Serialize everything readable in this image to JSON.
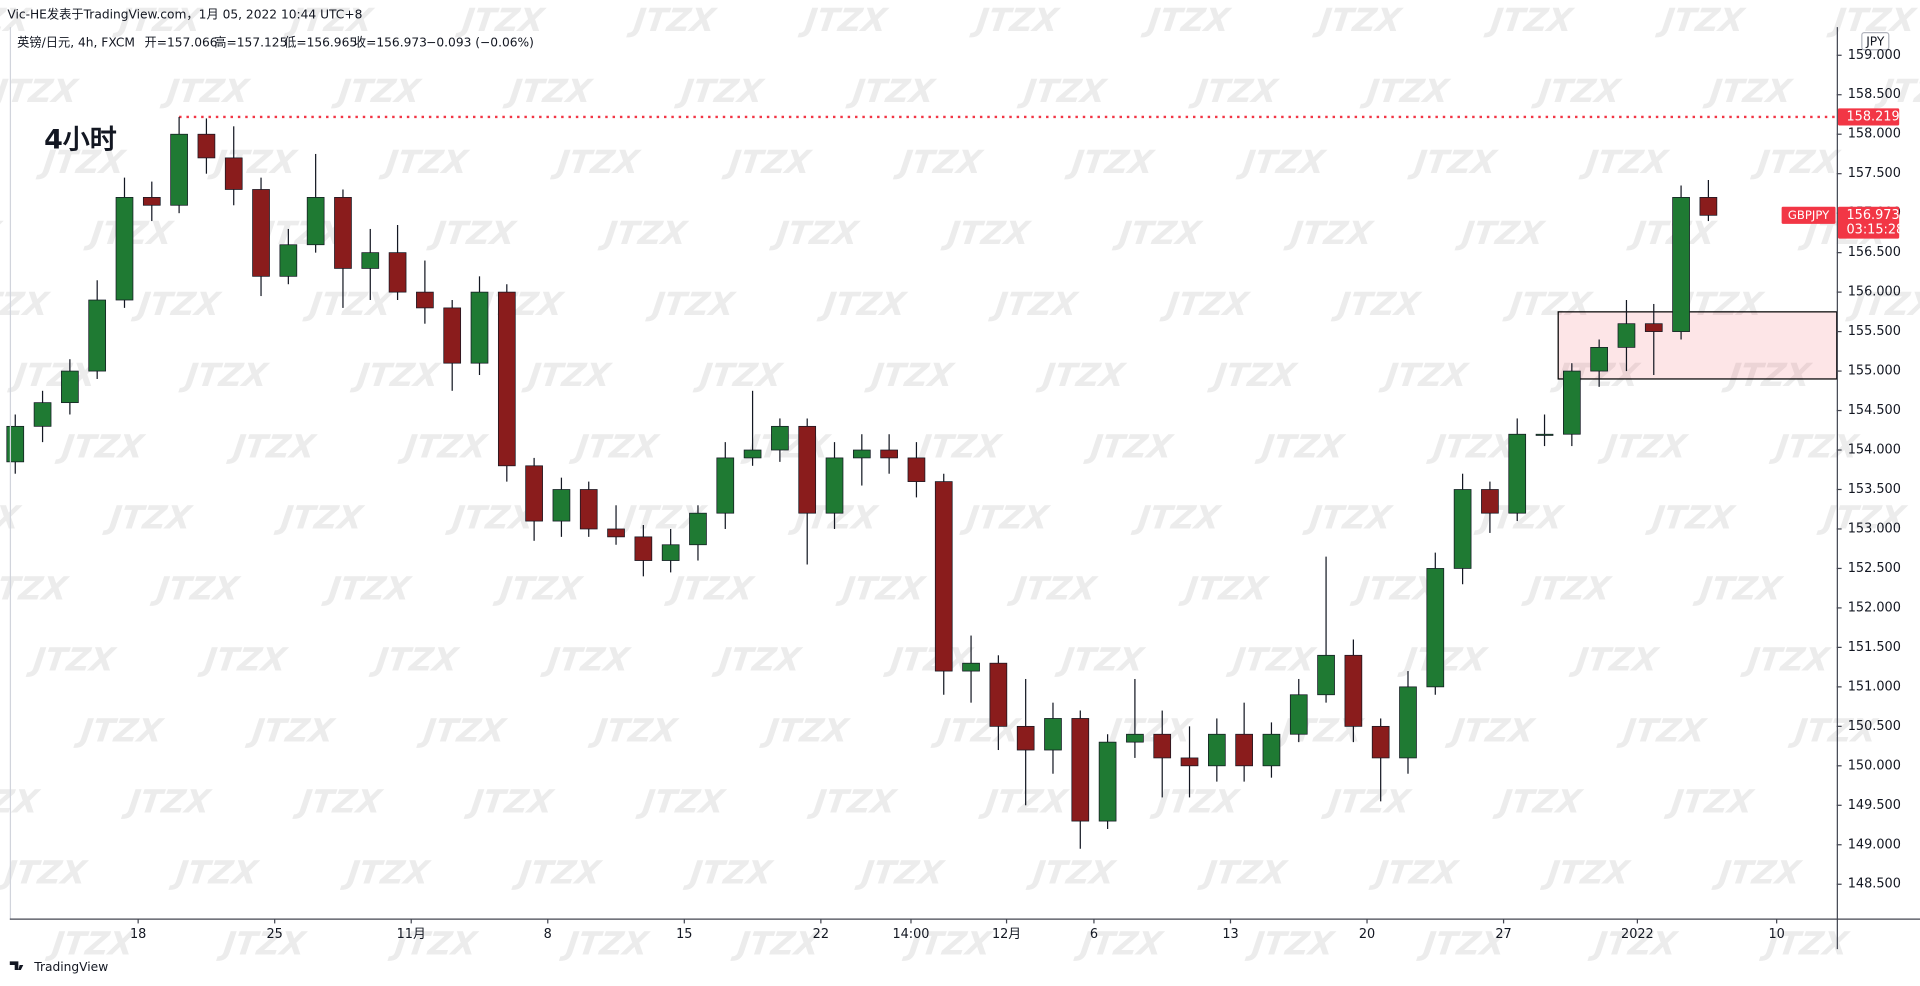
{
  "attribution": "Vic-HE发表于TradingView.com，1月 05, 2022 10:44 UTC+8",
  "footer": "TradingView",
  "chart_data": {
    "type": "candlestick",
    "symbol_line": "英镑/日元, 4h, FXCM",
    "ohlc_labels": [
      "开=157.066",
      "高=157.125",
      "低=156.965",
      "收=156.973"
    ],
    "change": "−0.093 (−0.06%)",
    "annotation": "4小时",
    "watermark": "JTZX",
    "currency": "JPY",
    "symbol": "GBPJPY",
    "last_price": 156.973,
    "countdown": "03:15:28",
    "up_color": "#1f7a33",
    "down_color": "#8a1c1c",
    "hline": 158.219,
    "hline_color": "#f23645",
    "zone": {
      "start": 56.5,
      "low": 154.9,
      "high": 155.75
    },
    "open": [
      153.85,
      154.3,
      154.6,
      155.0,
      155.9,
      157.2,
      157.1,
      158.0,
      157.7,
      157.3,
      156.2,
      156.6,
      157.2,
      156.3,
      156.5,
      156.0,
      155.8,
      155.1,
      156.0,
      153.8,
      153.1,
      153.5,
      153.0,
      152.9,
      152.6,
      152.8,
      153.2,
      153.9,
      154.0,
      154.3,
      153.2,
      153.9,
      154.0,
      153.9,
      153.6,
      151.2,
      151.3,
      150.5,
      150.2,
      150.6,
      149.3,
      150.3,
      150.4,
      150.1,
      150.0,
      150.4,
      150.0,
      150.4,
      150.9,
      151.4,
      150.5,
      150.1,
      151.0,
      152.5,
      153.5,
      153.2,
      154.2,
      154.2,
      155.0,
      155.3,
      155.6,
      155.5,
      157.2
    ],
    "high": [
      154.45,
      154.75,
      155.15,
      156.15,
      157.45,
      157.4,
      158.219,
      158.2,
      158.1,
      157.45,
      156.8,
      157.75,
      157.3,
      156.8,
      156.85,
      156.4,
      155.9,
      156.2,
      156.1,
      153.9,
      153.65,
      153.6,
      153.3,
      153.05,
      153.0,
      153.3,
      154.1,
      154.75,
      154.4,
      154.4,
      154.1,
      154.2,
      154.2,
      154.1,
      153.7,
      151.65,
      151.4,
      151.1,
      150.8,
      150.7,
      150.4,
      151.1,
      150.7,
      150.5,
      150.6,
      150.8,
      150.55,
      151.1,
      152.65,
      151.6,
      150.6,
      151.2,
      152.7,
      153.7,
      153.6,
      154.4,
      154.45,
      155.1,
      155.4,
      155.9,
      155.85,
      157.35,
      157.42
    ],
    "low": [
      153.7,
      154.1,
      154.45,
      154.9,
      155.8,
      156.9,
      157.0,
      157.5,
      157.1,
      155.95,
      156.1,
      156.5,
      155.8,
      155.9,
      155.9,
      155.6,
      154.75,
      154.95,
      153.6,
      152.85,
      152.9,
      152.9,
      152.8,
      152.4,
      152.45,
      152.6,
      153.0,
      153.8,
      153.85,
      152.55,
      153.0,
      153.55,
      153.7,
      153.4,
      150.9,
      150.8,
      150.2,
      149.5,
      149.9,
      148.95,
      149.2,
      150.1,
      149.6,
      149.6,
      149.8,
      149.8,
      149.85,
      150.3,
      150.8,
      150.3,
      149.55,
      149.9,
      150.9,
      152.3,
      152.95,
      153.1,
      154.05,
      154.05,
      154.8,
      155.0,
      154.95,
      155.4,
      156.9
    ],
    "close": [
      154.3,
      154.6,
      155.0,
      155.9,
      157.2,
      157.1,
      158.0,
      157.7,
      157.3,
      156.2,
      156.6,
      157.2,
      156.3,
      156.5,
      156.0,
      155.8,
      155.1,
      156.0,
      153.8,
      153.1,
      153.5,
      153.0,
      152.9,
      152.6,
      152.8,
      153.2,
      153.9,
      154.0,
      154.3,
      153.2,
      153.9,
      154.0,
      153.9,
      153.6,
      151.2,
      151.3,
      150.5,
      150.2,
      150.6,
      149.3,
      150.3,
      150.4,
      150.1,
      150.0,
      150.4,
      150.0,
      150.4,
      150.9,
      151.4,
      150.5,
      150.1,
      151.0,
      152.5,
      153.5,
      153.2,
      154.2,
      154.2,
      155.0,
      155.3,
      155.6,
      155.5,
      157.2,
      156.973
    ],
    "xlim": [
      -0.2,
      66.7
    ],
    "xticks": [
      {
        "value": 4.5,
        "label": "18"
      },
      {
        "value": 9.5,
        "label": "25"
      },
      {
        "value": 14.5,
        "label": "11月"
      },
      {
        "value": 19.5,
        "label": "8"
      },
      {
        "value": 24.5,
        "label": "15"
      },
      {
        "value": 29.5,
        "label": "22"
      },
      {
        "value": 32.8,
        "label": "14:00"
      },
      {
        "value": 36.3,
        "label": "12月"
      },
      {
        "value": 39.5,
        "label": "6"
      },
      {
        "value": 44.5,
        "label": "13"
      },
      {
        "value": 49.5,
        "label": "20"
      },
      {
        "value": 54.5,
        "label": "27"
      },
      {
        "value": 59.4,
        "label": "2022"
      },
      {
        "value": 64.5,
        "label": "10"
      }
    ],
    "ylim": [
      148.066,
      159.357
    ],
    "yticks": [
      {
        "value": 148.5,
        "label": "148.500"
      },
      {
        "value": 149,
        "label": "149.000"
      },
      {
        "value": 149.5,
        "label": "149.500"
      },
      {
        "value": 150,
        "label": "150.000"
      },
      {
        "value": 150.5,
        "label": "150.500"
      },
      {
        "value": 151,
        "label": "151.000"
      },
      {
        "value": 151.5,
        "label": "151.500"
      },
      {
        "value": 152,
        "label": "152.000"
      },
      {
        "value": 152.5,
        "label": "152.500"
      },
      {
        "value": 153,
        "label": "153.000"
      },
      {
        "value": 153.5,
        "label": "153.500"
      },
      {
        "value": 154,
        "label": "154.000"
      },
      {
        "value": 154.5,
        "label": "154.500"
      },
      {
        "value": 155,
        "label": "155.000"
      },
      {
        "value": 155.5,
        "label": "155.500"
      },
      {
        "value": 156,
        "label": "156.000"
      },
      {
        "value": 156.5,
        "label": "156.500"
      },
      {
        "value": 157,
        "label": "157.000"
      },
      {
        "value": 157.5,
        "label": "157.500"
      },
      {
        "value": 158,
        "label": "158.000"
      },
      {
        "value": 158.5,
        "label": "158.500"
      },
      {
        "value": 159,
        "label": "159.000"
      }
    ]
  }
}
